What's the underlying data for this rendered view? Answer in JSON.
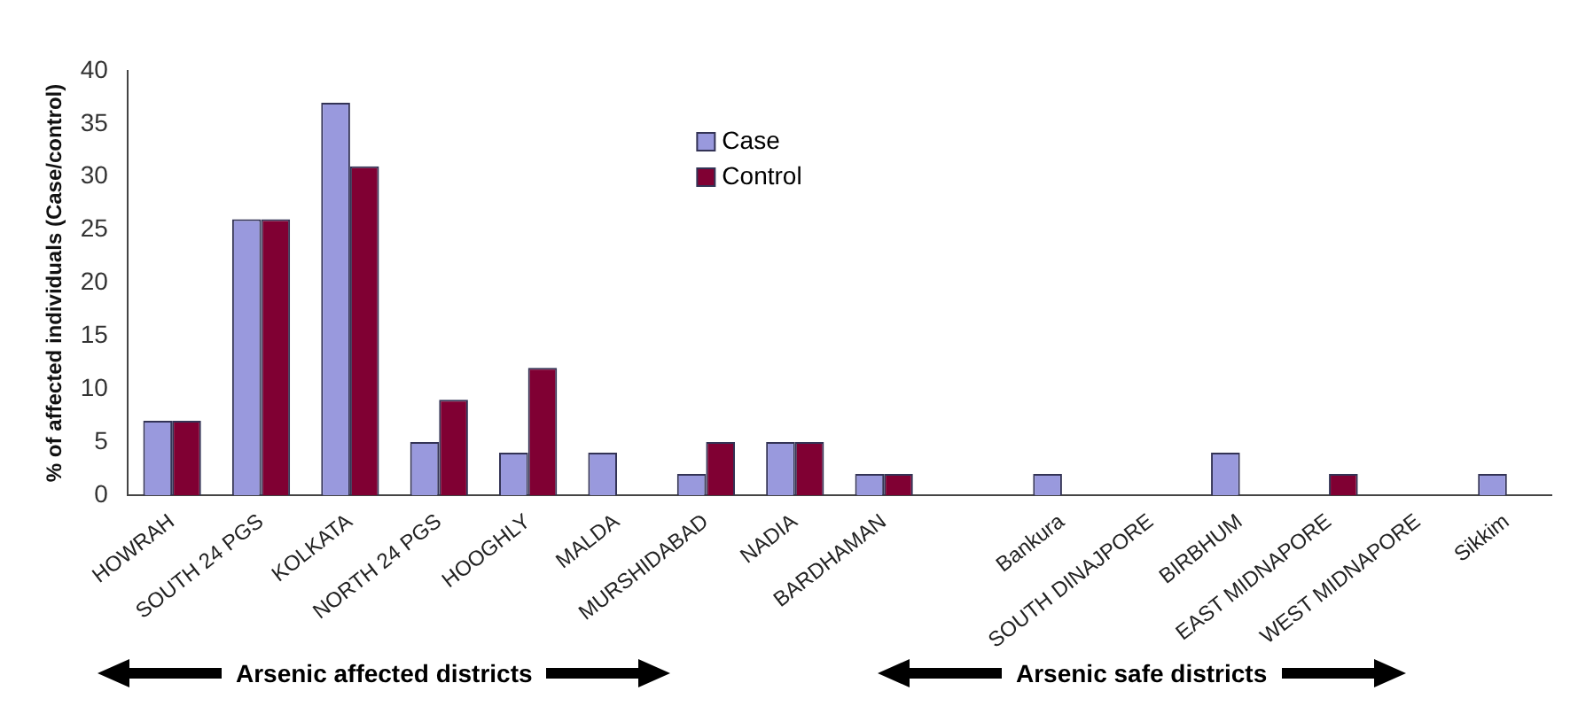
{
  "chart_data": {
    "type": "bar",
    "ylabel": "% of affected individuals (Case/control)",
    "categories": [
      "HOWRAH",
      "SOUTH 24 PGS",
      "KOLKATA",
      "NORTH 24 PGS",
      "HOOGHLY",
      "MALDA",
      "MURSHIDABAD",
      "NADIA",
      "BARDHAMAN",
      null,
      "Bankura",
      "SOUTH DINAJPORE",
      "BIRBHUM",
      "EAST MIDNAPORE",
      "WEST MIDNAPORE",
      "Sikkim"
    ],
    "series": [
      {
        "name": "Case",
        "color": "#9999dd",
        "values": [
          7,
          26,
          37,
          5,
          4,
          4,
          2,
          5,
          2,
          null,
          2,
          0,
          4,
          0,
          0,
          2
        ]
      },
      {
        "name": "Control",
        "color": "#800033",
        "values": [
          7,
          26,
          31,
          9,
          12,
          0,
          5,
          5,
          2,
          null,
          0,
          0,
          0,
          2,
          0,
          0
        ]
      }
    ],
    "ylim": [
      0,
      40
    ],
    "yticks": [
      0,
      5,
      10,
      15,
      20,
      25,
      30,
      35,
      40
    ],
    "grid": false,
    "legend": "top",
    "annotations": [
      "Arsenic affected districts",
      "Arsenic safe districts"
    ]
  }
}
